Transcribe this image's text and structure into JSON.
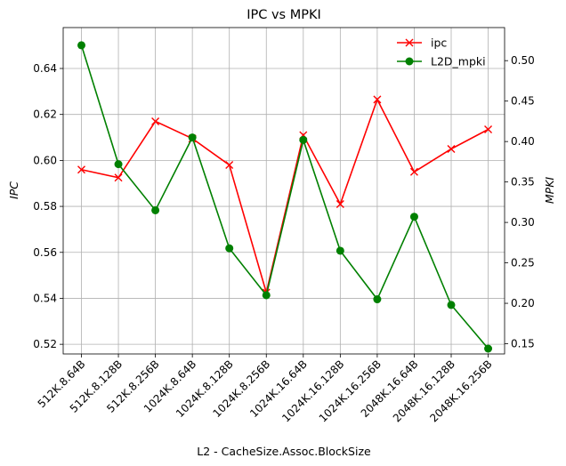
{
  "chart_data": {
    "type": "line",
    "title": "IPC vs MPKI",
    "xlabel": "L2 - CacheSize.Assoc.BlockSize",
    "ylabel_left": "IPC",
    "ylabel_right": "MPKI",
    "categories": [
      "512K.8.64B",
      "512K.8.128B",
      "512K.8.256B",
      "1024K.8.64B",
      "1024K.8.128B",
      "1024K.8.256B",
      "1024K.16.64B",
      "1024K.16.128B",
      "1024K.16.256B",
      "2048K.16.64B",
      "2048K.16.128B",
      "2048K.16.256B"
    ],
    "series": [
      {
        "name": "ipc",
        "axis": "left",
        "color": "#ff0000",
        "marker": "x",
        "values": [
          0.596,
          0.5925,
          0.617,
          0.6095,
          0.598,
          0.5425,
          0.611,
          0.581,
          0.6265,
          0.595,
          0.605,
          0.6135
        ]
      },
      {
        "name": "L2D_mpki",
        "axis": "right",
        "color": "#008000",
        "marker": "o",
        "values": [
          0.519,
          0.372,
          0.315,
          0.405,
          0.268,
          0.21,
          0.402,
          0.265,
          0.205,
          0.307,
          0.198,
          0.144
        ]
      }
    ],
    "ylim_left": [
      0.5158,
      0.6578
    ],
    "ylim_right": [
      0.1374,
      0.5409
    ],
    "yticks_left": [
      "0.52",
      "0.54",
      "0.56",
      "0.58",
      "0.60",
      "0.62",
      "0.64"
    ],
    "yticks_right": [
      "0.15",
      "0.20",
      "0.25",
      "0.30",
      "0.35",
      "0.40",
      "0.45",
      "0.50"
    ],
    "grid": true,
    "legend_position": "top-right"
  }
}
